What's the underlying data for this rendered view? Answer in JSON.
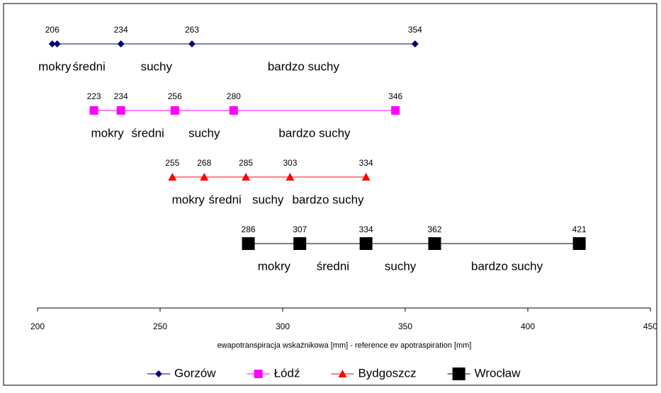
{
  "chart_data": {
    "type": "range-line",
    "xlabel": "ewapotranspiracja wskaźnikowa [mm] - reference ev apotraspiration [mm]",
    "xlim": [
      200,
      450
    ],
    "xticks": [
      200,
      250,
      300,
      350,
      400,
      450
    ],
    "legend": "bottom",
    "series": [
      {
        "name": "Gorzów",
        "color": "#000080",
        "marker": "diamond",
        "values": [
          206,
          208,
          234,
          263,
          354
        ],
        "value_labels": [
          "206",
          null,
          "234",
          "263",
          "354"
        ],
        "classes": [
          "mokry",
          "średni",
          "suchy",
          "bardzo suchy"
        ]
      },
      {
        "name": "Łódź",
        "color": "#FF00FF",
        "marker": "square",
        "values": [
          223,
          234,
          256,
          280,
          346
        ],
        "value_labels": [
          "223",
          "234",
          "256",
          "280",
          "346"
        ],
        "classes": [
          "mokry",
          "średni",
          "suchy",
          "bardzo suchy"
        ]
      },
      {
        "name": "Bydgoszcz",
        "color": "#FF0000",
        "marker": "triangle",
        "values": [
          255,
          268,
          285,
          303,
          334
        ],
        "value_labels": [
          "255",
          "268",
          "285",
          "303",
          "334"
        ],
        "classes": [
          "mokry",
          "średni",
          "suchy",
          "bardzo suchy"
        ]
      },
      {
        "name": "Wrocław",
        "color": "#000000",
        "marker": "bigsquare",
        "values": [
          286,
          307,
          334,
          362,
          421
        ],
        "value_labels": [
          "286",
          "307",
          "334",
          "362",
          "421"
        ],
        "classes": [
          "mokry",
          "średni",
          "suchy",
          "bardzo suchy"
        ]
      }
    ]
  }
}
